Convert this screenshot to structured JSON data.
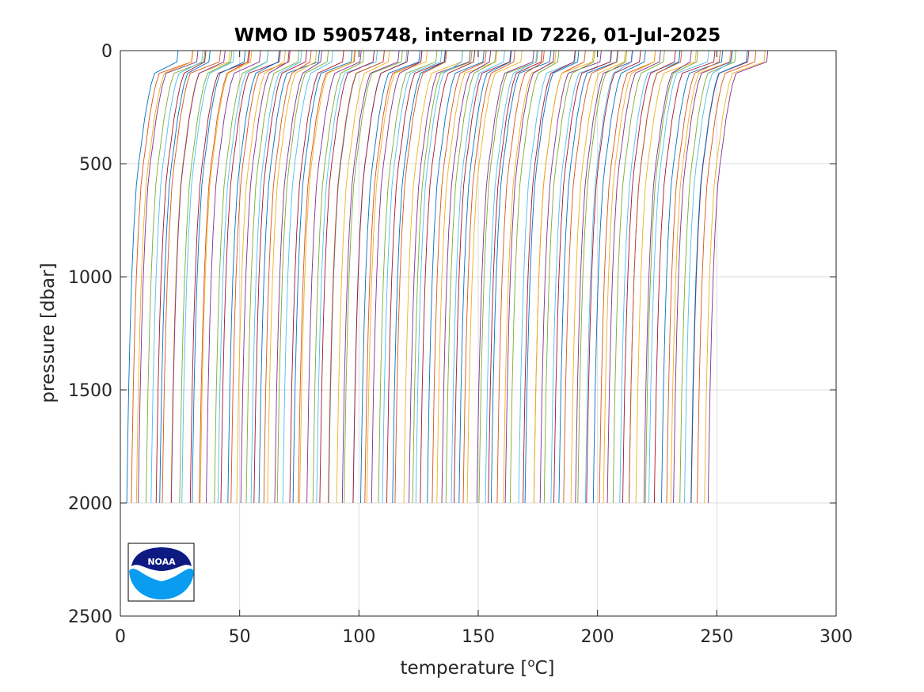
{
  "chart_data": {
    "type": "line",
    "title": "WMO ID 5905748, internal ID 7226, 01-Jul-2025",
    "xlabel_pre": "temperature [",
    "xlabel_sup": "o",
    "xlabel_post": "C]",
    "ylabel": "pressure [dbar]",
    "xlim": [
      0,
      300
    ],
    "ylim": [
      0,
      2500
    ],
    "y_reversed": true,
    "grid": true,
    "xticks": [
      0,
      50,
      100,
      150,
      200,
      250,
      300
    ],
    "yticks": [
      0,
      500,
      1000,
      1500,
      2000,
      2500
    ],
    "series_count": 123,
    "profile_offset_step": 2,
    "profile_template": {
      "pressure": [
        0,
        50,
        100,
        150,
        200,
        300,
        400,
        500,
        600,
        800,
        1000,
        1200,
        1500,
        1800,
        2000
      ],
      "temperature": [
        25,
        24.5,
        14,
        12.5,
        11.5,
        9.8,
        8.6,
        7.3,
        6.3,
        5.2,
        4.4,
        3.8,
        3.1,
        2.6,
        2.3
      ]
    },
    "max_pressure": 2000,
    "colors": [
      "#0072BD",
      "#D95319",
      "#EDB120",
      "#7E2F8E",
      "#77AC30",
      "#4DBEEE",
      "#A2142F"
    ]
  },
  "logo": {
    "text": "NOAA"
  }
}
